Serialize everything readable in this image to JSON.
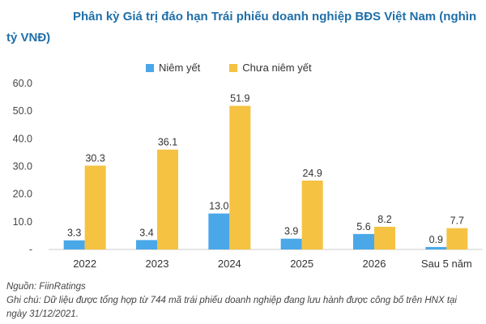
{
  "title_line1": "Phân kỳ Giá trị đáo hạn Trái phiếu doanh nghiệp BĐS Việt Nam (nghìn",
  "title_line2": "tỷ VNĐ)",
  "source": "Nguồn: FiinRatings",
  "note_line1": "Ghi chú: Dữ liệu được tổng hợp từ 744 mã trái phiếu doanh nghiệp đang lưu hành được công bố trên HNX tại",
  "note_line2": "ngày 31/12/2021.",
  "colors": {
    "listed": "#4aa8e8",
    "unlisted": "#f5c242"
  },
  "chart_data": {
    "type": "bar",
    "title": "Phân kỳ Giá trị đáo hạn Trái phiếu doanh nghiệp BĐS Việt Nam (nghìn tỷ VNĐ)",
    "categories": [
      "2022",
      "2023",
      "2024",
      "2025",
      "2026",
      "Sau 5 năm"
    ],
    "series": [
      {
        "name": "Niêm yết",
        "values": [
          3.3,
          3.4,
          13.0,
          3.9,
          5.6,
          0.9
        ],
        "labels": [
          "3.3",
          "3.4",
          "13.0",
          "3.9",
          "5.6",
          "0.9"
        ]
      },
      {
        "name": "Chưa niêm yết",
        "values": [
          30.3,
          36.1,
          51.9,
          24.9,
          8.2,
          7.7
        ],
        "labels": [
          "30.3",
          "36.1",
          "51.9",
          "24.9",
          "8.2",
          "7.7"
        ]
      }
    ],
    "yticks": [
      "-",
      "10.0",
      "20.0",
      "30.0",
      "40.0",
      "50.0",
      "60.0"
    ],
    "ylim": [
      0,
      60
    ],
    "grid": false,
    "legend": "top"
  }
}
